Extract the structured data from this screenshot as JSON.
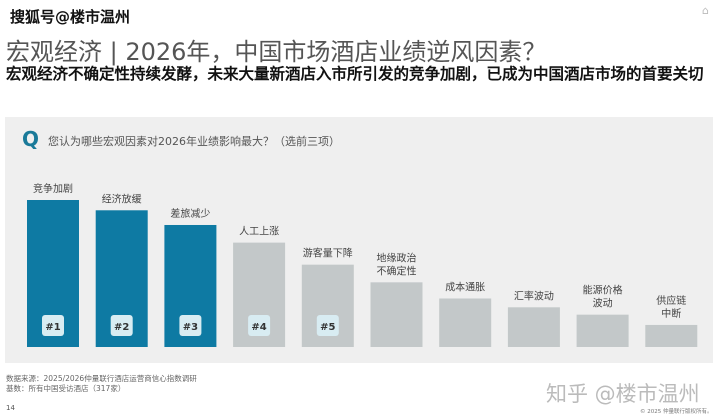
{
  "watermark_top": "搜狐号@楼市温州",
  "watermark_bottom": "知乎 @楼市温州",
  "title": "宏观经济 | 2026年，中国市场酒店业绩逆风因素？",
  "subtitle": "宏观经济不确定性持续发酵，未来大量新酒店入市所引发的竞争加剧，已成为中国酒店市场的首要关切",
  "footer": {
    "source": "数据来源：2025/2026仲量联行酒店运营商信心指数调研",
    "base": "基数：所有中国受访酒店（317家）",
    "page": "14",
    "copyright": "© 2025 仲量联行版权所有。"
  },
  "chart_data": {
    "type": "bar",
    "title": "您认为哪些宏观因素对2026年业绩影响最大？（选前三项）",
    "question_icon": "Q",
    "categories": [
      "竞争加剧",
      "经济放缓",
      "差旅减少",
      "人工上涨",
      "游客量下降",
      "地缘政治\n不确定性",
      "成本通胀",
      "汇率波动",
      "能源价格\n波动",
      "供应链\n中断"
    ],
    "values": [
      100,
      93,
      83,
      71,
      56,
      44,
      33,
      27,
      22,
      15
    ],
    "value_note": "relative index, no values printed",
    "ranks": [
      "#1",
      "#2",
      "#3",
      "#4",
      "#5"
    ],
    "colors": {
      "top3": "#0e7aa3",
      "other": "#c3c8c9",
      "rank_badge": "#d8ecf2"
    },
    "ylim": [
      0,
      100
    ]
  }
}
